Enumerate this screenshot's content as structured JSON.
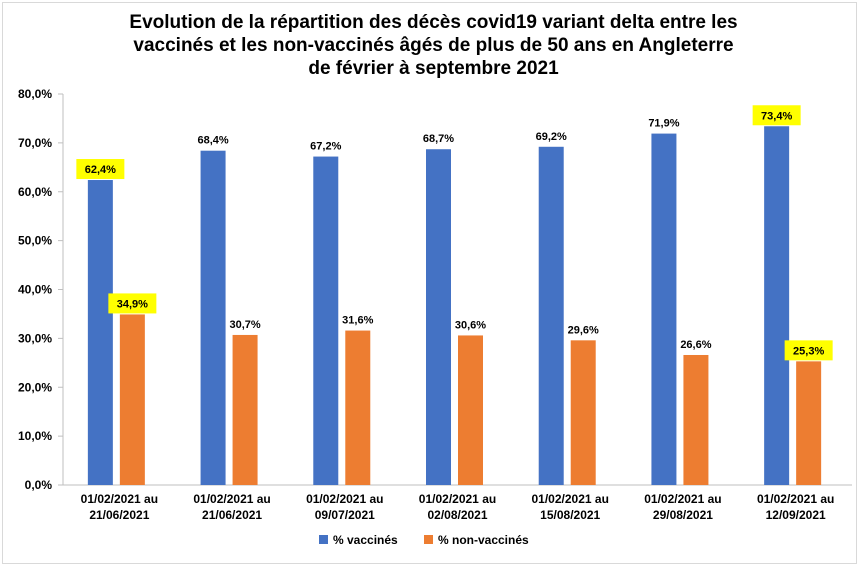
{
  "chart_data": {
    "type": "bar",
    "title": "Evolution de la répartition des décès covid19 variant delta entre les\nvaccinés et les non-vaccinés âgés de plus de 50 ans en Angleterre\nde février à septembre 2021",
    "categories": [
      [
        "01/02/2021 au",
        "21/06/2021"
      ],
      [
        "01/02/2021 au",
        "21/06/2021"
      ],
      [
        "01/02/2021 au",
        "09/07/2021"
      ],
      [
        "01/02/2021 au",
        "02/08/2021"
      ],
      [
        "01/02/2021 au",
        "15/08/2021"
      ],
      [
        "01/02/2021 au",
        "29/08/2021"
      ],
      [
        "01/02/2021 au",
        "12/09/2021"
      ]
    ],
    "series": [
      {
        "name": "% vaccinés",
        "color": "#4472c4",
        "values": [
          62.4,
          68.4,
          67.2,
          68.7,
          69.2,
          71.9,
          73.4
        ],
        "labels": [
          "62,4%",
          "68,4%",
          "67,2%",
          "68,7%",
          "69,2%",
          "71,9%",
          "73,4%"
        ],
        "highlighted": [
          true,
          false,
          false,
          false,
          false,
          false,
          true
        ]
      },
      {
        "name": "% non-vaccinés",
        "color": "#ed7d31",
        "values": [
          34.9,
          30.7,
          31.6,
          30.6,
          29.6,
          26.6,
          25.3
        ],
        "labels": [
          "34,9%",
          "30,7%",
          "31,6%",
          "30,6%",
          "29,6%",
          "26,6%",
          "25,3%"
        ],
        "highlighted": [
          true,
          false,
          false,
          false,
          false,
          false,
          true
        ]
      }
    ],
    "y_ticks": [
      "0,0%",
      "10,0%",
      "20,0%",
      "30,0%",
      "40,0%",
      "50,0%",
      "60,0%",
      "70,0%",
      "80,0%"
    ],
    "ylim": [
      0,
      80
    ],
    "grid": false,
    "highlight_color": "#ffff00",
    "legend": "bottom-center"
  }
}
